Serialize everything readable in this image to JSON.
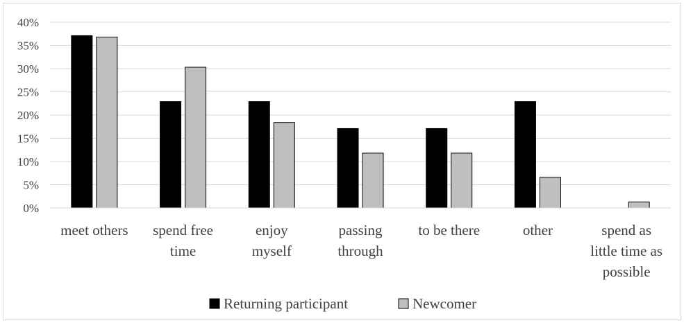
{
  "chart_data": {
    "type": "bar",
    "categories": [
      [
        "meet others"
      ],
      [
        "spend free",
        "time"
      ],
      [
        "enjoy",
        "myself"
      ],
      [
        "passing",
        "through"
      ],
      [
        "to be there"
      ],
      [
        "other"
      ],
      [
        "spend as",
        "little time as",
        "possible"
      ]
    ],
    "series": [
      {
        "name": "Returning participant",
        "color": "#000000",
        "values": [
          37.1,
          22.9,
          22.9,
          17.1,
          17.1,
          22.9,
          0
        ]
      },
      {
        "name": "Newcomer",
        "color": "#bfbfbf",
        "values": [
          36.8,
          30.3,
          18.4,
          11.8,
          11.8,
          6.6,
          1.3
        ]
      }
    ],
    "y_ticks": [
      "0%",
      "5%",
      "10%",
      "15%",
      "20%",
      "25%",
      "30%",
      "35%",
      "40%"
    ],
    "ylim": [
      0,
      40
    ],
    "grid": true,
    "legend": "bottom-center"
  }
}
